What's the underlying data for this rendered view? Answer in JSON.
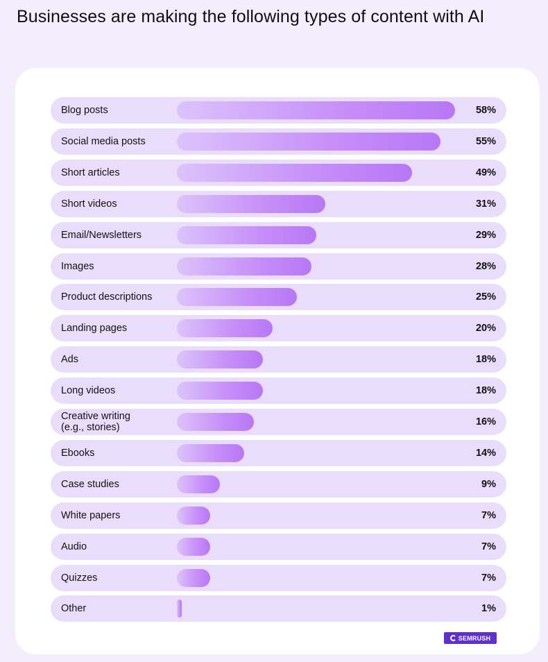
{
  "title": "Businesses are making the following types of content with AI",
  "brand": {
    "logo_text": "SEMRUSH",
    "logo_color": "#5f2fd0"
  },
  "colors": {
    "row_bg": "#e9ddfb",
    "bar_start": "#dcc3fb",
    "bar_end": "#b877f6",
    "page_bg": "#f4eefc"
  },
  "chart_data": {
    "type": "bar",
    "orientation": "horizontal",
    "categories": [
      "Blog posts",
      "Social media posts",
      "Short articles",
      "Short videos",
      "Email/Newsletters",
      "Images",
      "Product descriptions",
      "Landing pages",
      "Ads",
      "Long videos",
      "Creative writing\n(e.g., stories)",
      "Ebooks",
      "Case studies",
      "White papers",
      "Audio",
      "Quizzes",
      "Other"
    ],
    "values": [
      58,
      55,
      49,
      31,
      29,
      28,
      25,
      20,
      18,
      18,
      16,
      14,
      9,
      7,
      7,
      7,
      1
    ],
    "value_labels": [
      "58%",
      "55%",
      "49%",
      "31%",
      "29%",
      "28%",
      "25%",
      "20%",
      "18%",
      "18%",
      "16%",
      "14%",
      "9%",
      "7%",
      "7%",
      "7%",
      "1%"
    ],
    "title": "Businesses are making the following types of content with AI",
    "xlabel": "",
    "ylabel": "",
    "xlim": [
      0,
      60
    ],
    "grid": false,
    "legend": "none"
  }
}
